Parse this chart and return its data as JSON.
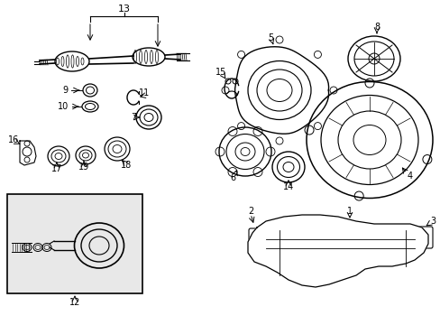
{
  "background_color": "#ffffff",
  "line_color": "#000000",
  "text_color": "#000000",
  "fig_width": 4.89,
  "fig_height": 3.6,
  "dpi": 100,
  "inset_bg": "#e8e8e8"
}
